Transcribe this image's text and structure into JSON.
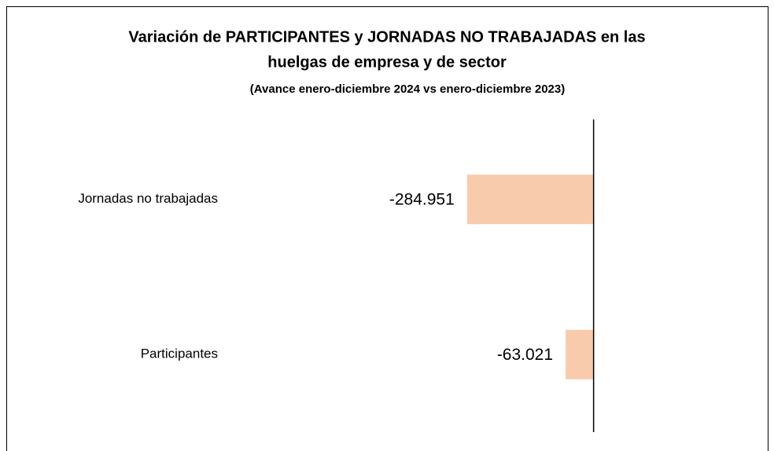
{
  "chart_data": {
    "type": "bar",
    "orientation": "horizontal",
    "title": [
      "Variación de PARTICIPANTES  y JORNADAS NO TRABAJADAS en las",
      "huelgas de empresa y de sector"
    ],
    "subtitle": "(Avance enero-diciembre 2024  vs enero-diciembre 2023)",
    "categories": [
      "Jornadas no trabajadas",
      "Participantes"
    ],
    "values": [
      -284951,
      -63021
    ],
    "value_labels": [
      "-284.951",
      "-63.021"
    ],
    "color": "#f8cbad",
    "xlim": [
      -800000,
      300000
    ]
  }
}
